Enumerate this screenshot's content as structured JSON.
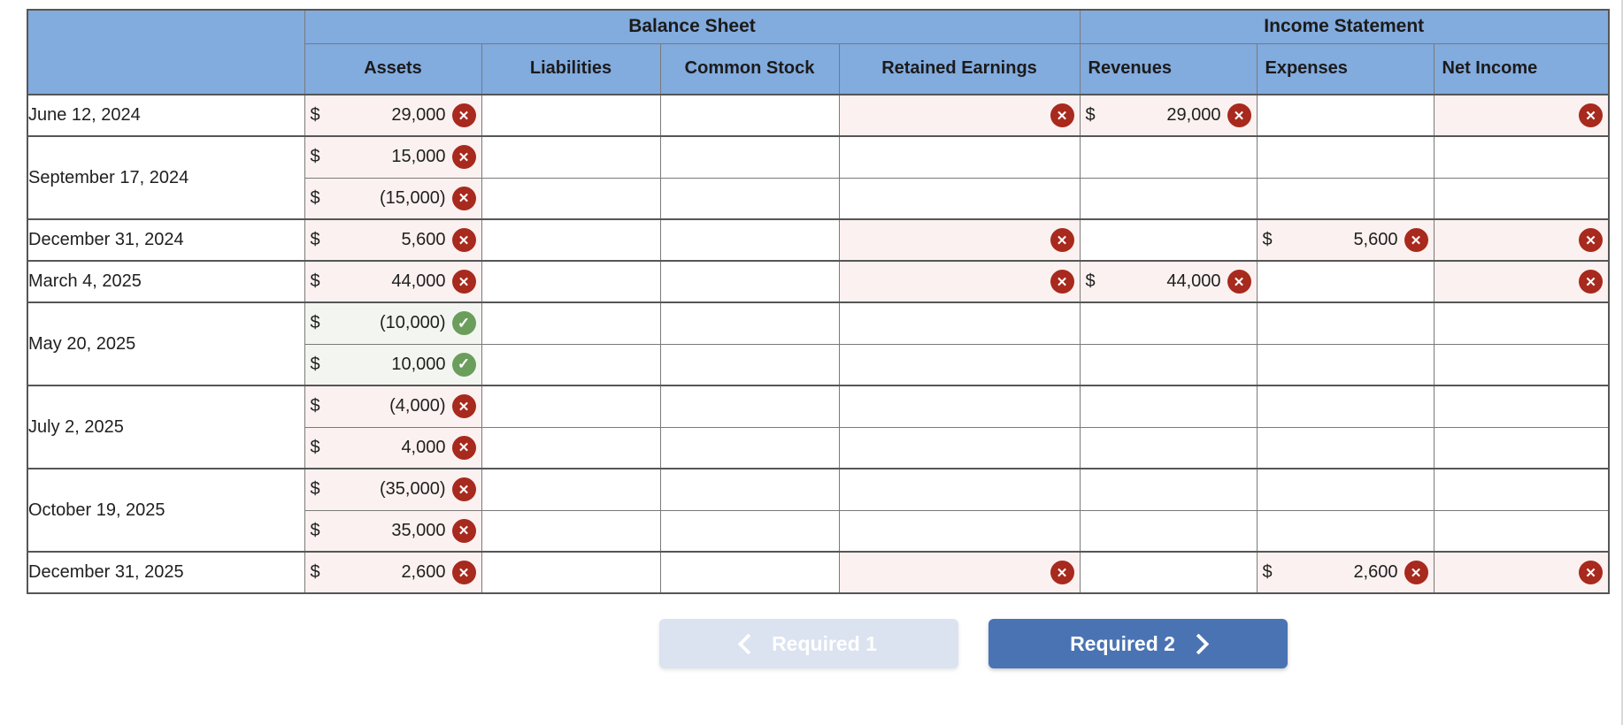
{
  "colors": {
    "header_blue": "#82abde",
    "header_text": "#1b1b1b",
    "text": "#1f1f1f",
    "border": "#7a7a7a",
    "border_strong": "#565656",
    "wrong_bg": "#faf1f0",
    "correct_bg": "#f3f6f0",
    "wrong_icon": "#a8291d",
    "correct_icon": "#6b9e5c",
    "btn_primary": "#4a73b3",
    "btn_disabled": "#dbe2f0"
  },
  "table": {
    "currency_symbol": "$",
    "icons": {
      "wrong": "✕",
      "correct": "✓"
    },
    "sections": [
      {
        "label": "Balance Sheet",
        "colspan": 4
      },
      {
        "label": "Income Statement",
        "colspan": 3
      }
    ],
    "columns": [
      {
        "label": "Assets",
        "key": "assets",
        "group": "bs"
      },
      {
        "label": "Liabilities",
        "key": "liabilities",
        "group": "bs"
      },
      {
        "label": "Common Stock",
        "key": "common-stock",
        "group": "bs"
      },
      {
        "label": "Retained Earnings",
        "key": "retained-earnings",
        "group": "bs"
      },
      {
        "label": "Revenues",
        "key": "revenues",
        "group": "is"
      },
      {
        "label": "Expenses",
        "key": "expenses",
        "group": "is"
      },
      {
        "label": "Net Income",
        "key": "net-income",
        "group": "is"
      }
    ],
    "rows": [
      {
        "date": "June 12, 2024",
        "subrows": [
          {
            "cells": [
              {
                "s": "wrong",
                "v": "29,000"
              },
              {
                "s": "empty"
              },
              {
                "s": "empty"
              },
              {
                "s": "wrong-mark"
              },
              {
                "s": "wrong",
                "v": "29,000"
              },
              {
                "s": "empty"
              },
              {
                "s": "wrong-mark"
              }
            ]
          }
        ]
      },
      {
        "date": "September 17, 2024",
        "subrows": [
          {
            "cells": [
              {
                "s": "wrong",
                "v": "15,000"
              },
              {
                "s": "empty"
              },
              {
                "s": "empty"
              },
              {
                "s": "empty"
              },
              {
                "s": "empty"
              },
              {
                "s": "empty"
              },
              {
                "s": "empty"
              }
            ]
          },
          {
            "cells": [
              {
                "s": "wrong",
                "v": "(15,000)"
              },
              {
                "s": "empty"
              },
              {
                "s": "empty"
              },
              {
                "s": "empty"
              },
              {
                "s": "empty"
              },
              {
                "s": "empty"
              },
              {
                "s": "empty"
              }
            ]
          }
        ]
      },
      {
        "date": "December 31, 2024",
        "subrows": [
          {
            "cells": [
              {
                "s": "wrong",
                "v": "5,600"
              },
              {
                "s": "empty"
              },
              {
                "s": "empty"
              },
              {
                "s": "wrong-mark"
              },
              {
                "s": "empty"
              },
              {
                "s": "wrong",
                "v": "5,600"
              },
              {
                "s": "wrong-mark"
              }
            ]
          }
        ]
      },
      {
        "date": "March 4, 2025",
        "subrows": [
          {
            "cells": [
              {
                "s": "wrong",
                "v": "44,000"
              },
              {
                "s": "empty"
              },
              {
                "s": "empty"
              },
              {
                "s": "wrong-mark"
              },
              {
                "s": "wrong",
                "v": "44,000"
              },
              {
                "s": "empty"
              },
              {
                "s": "wrong-mark"
              }
            ]
          }
        ]
      },
      {
        "date": "May 20, 2025",
        "subrows": [
          {
            "cells": [
              {
                "s": "correct",
                "v": "(10,000)"
              },
              {
                "s": "empty"
              },
              {
                "s": "empty"
              },
              {
                "s": "empty"
              },
              {
                "s": "empty"
              },
              {
                "s": "empty"
              },
              {
                "s": "empty"
              }
            ]
          },
          {
            "cells": [
              {
                "s": "correct",
                "v": "10,000"
              },
              {
                "s": "empty"
              },
              {
                "s": "empty"
              },
              {
                "s": "empty"
              },
              {
                "s": "empty"
              },
              {
                "s": "empty"
              },
              {
                "s": "empty"
              }
            ]
          }
        ]
      },
      {
        "date": "July 2, 2025",
        "subrows": [
          {
            "cells": [
              {
                "s": "wrong",
                "v": "(4,000)"
              },
              {
                "s": "empty"
              },
              {
                "s": "empty"
              },
              {
                "s": "empty"
              },
              {
                "s": "empty"
              },
              {
                "s": "empty"
              },
              {
                "s": "empty"
              }
            ]
          },
          {
            "cells": [
              {
                "s": "wrong",
                "v": "4,000"
              },
              {
                "s": "empty"
              },
              {
                "s": "empty"
              },
              {
                "s": "empty"
              },
              {
                "s": "empty"
              },
              {
                "s": "empty"
              },
              {
                "s": "empty"
              }
            ]
          }
        ]
      },
      {
        "date": "October 19, 2025",
        "subrows": [
          {
            "cells": [
              {
                "s": "wrong",
                "v": "(35,000)"
              },
              {
                "s": "empty"
              },
              {
                "s": "empty"
              },
              {
                "s": "empty"
              },
              {
                "s": "empty"
              },
              {
                "s": "empty"
              },
              {
                "s": "empty"
              }
            ]
          },
          {
            "cells": [
              {
                "s": "wrong",
                "v": "35,000"
              },
              {
                "s": "empty"
              },
              {
                "s": "empty"
              },
              {
                "s": "empty"
              },
              {
                "s": "empty"
              },
              {
                "s": "empty"
              },
              {
                "s": "empty"
              }
            ]
          }
        ]
      },
      {
        "date": "December 31, 2025",
        "subrows": [
          {
            "cells": [
              {
                "s": "wrong",
                "v": "2,600"
              },
              {
                "s": "empty"
              },
              {
                "s": "empty"
              },
              {
                "s": "wrong-mark"
              },
              {
                "s": "empty"
              },
              {
                "s": "wrong",
                "v": "2,600"
              },
              {
                "s": "wrong-mark"
              }
            ]
          }
        ]
      }
    ]
  },
  "footer": {
    "prev_label": "Required 1",
    "next_label": "Required 2"
  }
}
